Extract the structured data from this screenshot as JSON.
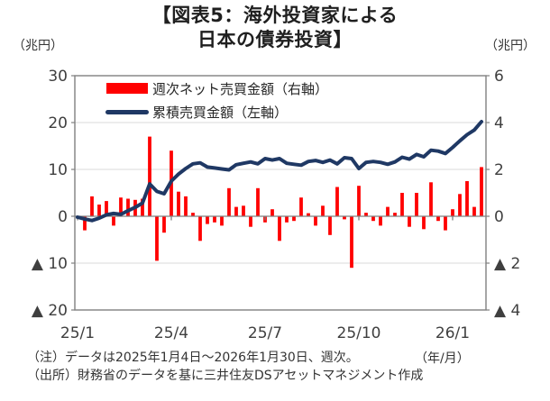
{
  "header": {
    "title_line1": "【図表5：海外投資家による",
    "title_line2": "日本の債券投資】"
  },
  "chart_data": {
    "type": "combo",
    "title": "【図表5：海外投資家による日本の債券投資】",
    "x_label": "（年/月）",
    "x_mode": "weekly",
    "weeks": 57,
    "x_ticks": [
      {
        "week": 0,
        "label": "25/1"
      },
      {
        "week": 13,
        "label": "25/4"
      },
      {
        "week": 26,
        "label": "25/7"
      },
      {
        "week": 39,
        "label": "25/10"
      },
      {
        "week": 52,
        "label": "26/1"
      }
    ],
    "left_axis": {
      "unit": "（兆円）",
      "min": -20,
      "max": 30,
      "ticks": [
        30,
        20,
        10,
        0,
        -10,
        -20
      ],
      "tick_labels": [
        "30",
        "20",
        "10",
        "0",
        "▲ 10",
        "▲ 20"
      ]
    },
    "right_axis": {
      "unit": "（兆円）",
      "min": -4,
      "max": 6,
      "ticks": [
        6,
        4,
        2,
        0,
        -2,
        -4
      ],
      "tick_labels": [
        "6",
        "4",
        "2",
        "0",
        "▲ 2",
        "▲ 4"
      ]
    },
    "grid": true,
    "colors": {
      "bar": "#ff0000",
      "line": "#1f3864",
      "grid": "#d9d9d9",
      "axis": "#808080",
      "tick_text": "#3f3f3f"
    },
    "series": [
      {
        "name": "週次ネット売買金額（右軸）",
        "type": "bar",
        "axis": "right",
        "color": "#ff0000",
        "values": [
          null,
          -0.6,
          0.85,
          0.5,
          0.65,
          -0.4,
          0.8,
          0.75,
          0.7,
          0.75,
          3.4,
          -1.9,
          -0.7,
          2.8,
          1.05,
          0.85,
          0.15,
          -1.05,
          -0.33,
          -0.26,
          -0.4,
          1.2,
          0.4,
          0.45,
          -0.45,
          1.2,
          -0.26,
          0.3,
          -1.05,
          -0.26,
          -0.2,
          0.8,
          0.13,
          -0.4,
          0.45,
          -0.8,
          1.25,
          -0.13,
          -2.2,
          1.3,
          0.15,
          -0.2,
          -0.4,
          0.4,
          0.15,
          1.0,
          -0.45,
          1.0,
          -0.55,
          1.45,
          -0.2,
          -0.6,
          0.3,
          0.95,
          1.5,
          0.4,
          2.1
        ]
      },
      {
        "name": "累積売買金額（左軸）",
        "type": "line",
        "axis": "left",
        "color": "#1f3864",
        "values": [
          -0.2,
          -0.6,
          -0.9,
          -0.4,
          0.3,
          0.6,
          0.4,
          1.2,
          1.9,
          2.8,
          6.9,
          5.3,
          4.8,
          7.5,
          9.0,
          10.2,
          11.2,
          11.4,
          10.5,
          10.3,
          10.1,
          9.9,
          11.0,
          11.3,
          11.6,
          11.2,
          12.3,
          12.0,
          12.3,
          11.3,
          11.1,
          10.9,
          11.7,
          11.9,
          11.5,
          12.0,
          11.2,
          12.5,
          12.3,
          10.2,
          11.5,
          11.7,
          11.5,
          11.1,
          11.6,
          12.6,
          12.2,
          13.2,
          12.7,
          14.1,
          13.9,
          13.4,
          14.7,
          16.1,
          17.4,
          18.4,
          20.2
        ]
      }
    ],
    "note": "（注）データは2025年1月4日～2026年1月30日、週次。",
    "source": "（出所）財務省のデータを基に三井住友DSアセットマネジメント作成"
  }
}
